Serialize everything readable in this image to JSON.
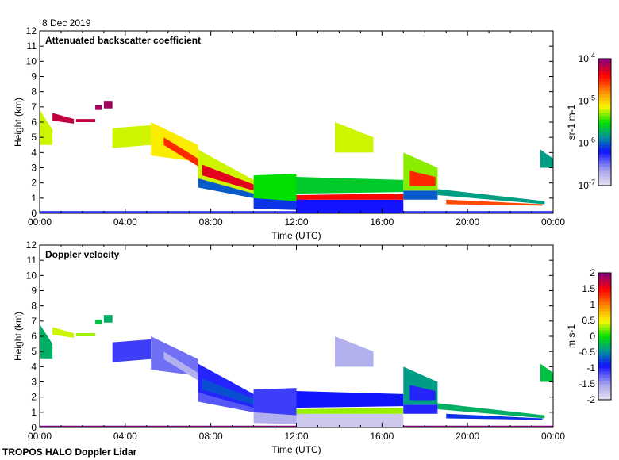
{
  "date_label": "8 Dec 2019",
  "footer": "TROPOS HALO Doppler Lidar",
  "chart_data": [
    {
      "type": "heatmap",
      "title": "Attenuated backscatter coefficient",
      "xlabel": "Time (UTC)",
      "ylabel": "Height (km)",
      "xlim": [
        0,
        24
      ],
      "ylim": [
        0,
        12
      ],
      "xticks": [
        "00:00",
        "04:00",
        "08:00",
        "12:00",
        "16:00",
        "20:00",
        "00:00"
      ],
      "yticks": [
        "0",
        "1",
        "2",
        "3",
        "4",
        "5",
        "6",
        "7",
        "8",
        "9",
        "10",
        "11",
        "12"
      ],
      "colorbar": {
        "label": "sr-1 m-1",
        "scale": "log",
        "range": [
          -7,
          -4
        ],
        "ticks": [
          "10-7",
          "10-6",
          "10-5",
          "10-4"
        ]
      },
      "regions": [
        [
          0,
          24,
          0,
          0,
          0.15,
          0.15,
          -6.3
        ],
        [
          0,
          0.6,
          4.5,
          4.5,
          6.8,
          5.5,
          -5.2
        ],
        [
          0.6,
          1.6,
          6.1,
          5.9,
          6.6,
          6.2,
          -4.2
        ],
        [
          1.7,
          2.6,
          6.0,
          6.0,
          6.2,
          6.2,
          -4.2
        ],
        [
          2.6,
          2.9,
          6.8,
          6.8,
          7.1,
          7.1,
          -4.1
        ],
        [
          3.0,
          3.4,
          6.9,
          6.9,
          7.4,
          7.4,
          -4.1
        ],
        [
          3.4,
          5.2,
          4.3,
          4.5,
          5.6,
          5.8,
          -5.2
        ],
        [
          5.2,
          7.4,
          3.8,
          3.4,
          6.0,
          4.5,
          -5.1
        ],
        [
          5.8,
          7.4,
          4.5,
          3.1,
          5.0,
          3.6,
          -4.5
        ],
        [
          7.4,
          10.0,
          1.7,
          1.0,
          2.3,
          1.4,
          -6.0
        ],
        [
          7.4,
          10.0,
          2.3,
          1.3,
          4.2,
          2.2,
          -5.2
        ],
        [
          7.6,
          10.0,
          2.5,
          1.5,
          3.2,
          1.9,
          -4.3
        ],
        [
          10,
          12.5,
          0.3,
          0.2,
          1.0,
          0.9,
          -6.1
        ],
        [
          10,
          12,
          1.0,
          0.8,
          2.5,
          2.6,
          -5.5
        ],
        [
          12,
          17,
          0.0,
          0.0,
          0.9,
          0.9,
          -6.2
        ],
        [
          12,
          17,
          1.3,
          1.4,
          2.4,
          2.2,
          -5.6
        ],
        [
          12,
          17,
          0.9,
          0.9,
          1.2,
          1.3,
          -4.4
        ],
        [
          13.8,
          15.6,
          4.0,
          4.0,
          6.0,
          5.0,
          -5.2
        ],
        [
          17,
          18.6,
          0.9,
          0.9,
          1.5,
          1.5,
          -6.0
        ],
        [
          17,
          18.6,
          1.5,
          1.5,
          4.0,
          3.0,
          -5.3
        ],
        [
          17.3,
          18.5,
          1.8,
          1.8,
          2.8,
          2.4,
          -4.5
        ],
        [
          18.6,
          23.6,
          1.2,
          0.6,
          1.6,
          0.8,
          -5.8
        ],
        [
          19,
          23.5,
          0.6,
          0.5,
          0.9,
          0.6,
          -4.6
        ],
        [
          23.4,
          24,
          3.0,
          3.0,
          4.2,
          3.6,
          -5.8
        ]
      ]
    },
    {
      "type": "heatmap",
      "title": "Doppler velocity",
      "xlabel": "Time (UTC)",
      "ylabel": "Height (km)",
      "xlim": [
        0,
        24
      ],
      "ylim": [
        0,
        12
      ],
      "xticks": [
        "00:00",
        "04:00",
        "08:00",
        "12:00",
        "16:00",
        "20:00",
        "00:00"
      ],
      "yticks": [
        "0",
        "1",
        "2",
        "3",
        "4",
        "5",
        "6",
        "7",
        "8",
        "9",
        "10",
        "11",
        "12"
      ],
      "colorbar": {
        "label": "m s-1",
        "scale": "linear",
        "range": [
          -2,
          2
        ],
        "ticks": [
          "-2",
          "-1.5",
          "-1",
          "-0.5",
          "0",
          "0.5",
          "1",
          "1.5",
          "2"
        ]
      },
      "regions": [
        [
          0,
          24,
          0,
          0,
          0.12,
          0.12,
          2.0
        ],
        [
          0,
          0.6,
          4.5,
          4.5,
          6.8,
          5.5,
          -0.3
        ],
        [
          0.6,
          1.6,
          6.1,
          5.9,
          6.6,
          6.2,
          0.4
        ],
        [
          1.7,
          2.6,
          6.0,
          6.0,
          6.2,
          6.2,
          0.3
        ],
        [
          2.6,
          2.9,
          6.8,
          6.8,
          7.1,
          7.1,
          -0.2
        ],
        [
          3.0,
          3.4,
          6.9,
          6.9,
          7.4,
          7.4,
          -0.3
        ],
        [
          3.4,
          5.2,
          4.3,
          4.5,
          5.6,
          5.8,
          -1.1
        ],
        [
          5.2,
          7.4,
          3.8,
          3.4,
          6.0,
          4.5,
          -1.3
        ],
        [
          5.8,
          7.4,
          4.5,
          3.1,
          5.0,
          3.6,
          -1.6
        ],
        [
          7.4,
          10.0,
          1.7,
          1.0,
          2.3,
          1.4,
          -1.2
        ],
        [
          7.4,
          10.0,
          2.3,
          1.3,
          4.2,
          2.2,
          -1.0
        ],
        [
          7.6,
          10.0,
          2.5,
          1.5,
          3.2,
          1.9,
          -0.7
        ],
        [
          10,
          12.5,
          0.3,
          0.2,
          1.0,
          0.9,
          -1.6
        ],
        [
          10,
          12,
          1.0,
          0.8,
          2.5,
          2.6,
          -1.1
        ],
        [
          12,
          17,
          0.0,
          0.0,
          0.9,
          0.9,
          -1.8
        ],
        [
          12,
          17,
          1.3,
          1.4,
          2.4,
          2.2,
          -0.9
        ],
        [
          12,
          17,
          0.9,
          0.9,
          1.2,
          1.3,
          0.3
        ],
        [
          13.8,
          15.6,
          4.0,
          4.0,
          6.0,
          5.0,
          -1.6
        ],
        [
          17,
          18.6,
          0.9,
          0.9,
          1.5,
          1.5,
          -1.0
        ],
        [
          17,
          18.6,
          1.5,
          1.5,
          4.0,
          3.0,
          -0.4
        ],
        [
          17.3,
          18.5,
          1.8,
          1.8,
          2.8,
          2.4,
          -1.0
        ],
        [
          18.6,
          23.6,
          1.2,
          0.6,
          1.6,
          0.8,
          -0.3
        ],
        [
          19,
          23.5,
          0.6,
          0.5,
          0.9,
          0.6,
          -0.8
        ],
        [
          23.4,
          24,
          3.0,
          3.0,
          4.2,
          3.6,
          -0.2
        ]
      ]
    }
  ]
}
